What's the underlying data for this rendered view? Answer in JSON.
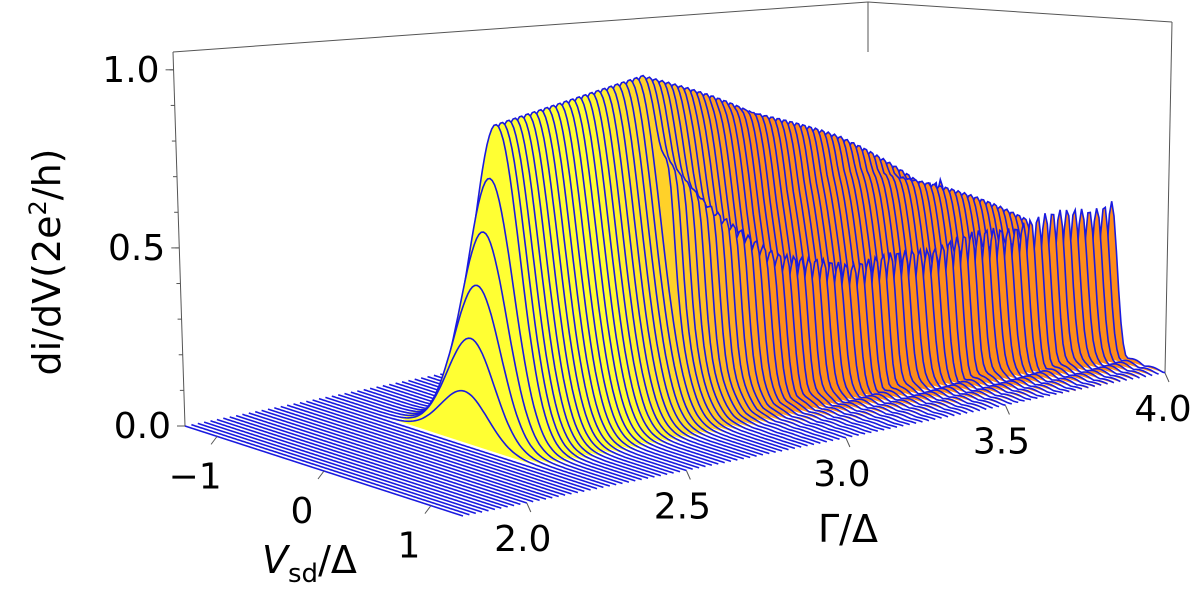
{
  "chart_data": {
    "type": "3d-waterfall",
    "axes": {
      "x": {
        "label_main": "Γ/Δ",
        "ticks": [
          2.0,
          2.5,
          3.0,
          3.5,
          4.0
        ],
        "tick_labels": [
          "2.0",
          "2.5",
          "3.0",
          "3.5",
          "4.0"
        ],
        "range": [
          1.8,
          4.0
        ]
      },
      "y": {
        "label_italic": "V",
        "label_sub": "sd",
        "label_tail": "/Δ",
        "ticks": [
          -1,
          0,
          1
        ],
        "tick_labels": [
          "−1",
          "0",
          "1"
        ],
        "range": [
          -1.3,
          1.3
        ]
      },
      "z": {
        "label_main": "di/dV(2e",
        "label_sup": "2",
        "label_tail": "/h)",
        "ticks": [
          0.0,
          0.5,
          1.0
        ],
        "tick_labels": [
          "0.0",
          "0.5",
          "1.0"
        ],
        "range": [
          0.0,
          1.05
        ]
      }
    },
    "series_description": {
      "gamma_min": 1.8,
      "gamma_max": 4.0,
      "gamma_step": 0.02,
      "onset_gamma": 2.22,
      "zbp_peak_height": 1.0,
      "split_onset_gamma": 2.8
    },
    "colors": {
      "line": "#1a1adf",
      "fill_low": "#ffff33",
      "fill_high": "#ff8c1a",
      "box": "#555555",
      "background": "#ffffff"
    }
  }
}
